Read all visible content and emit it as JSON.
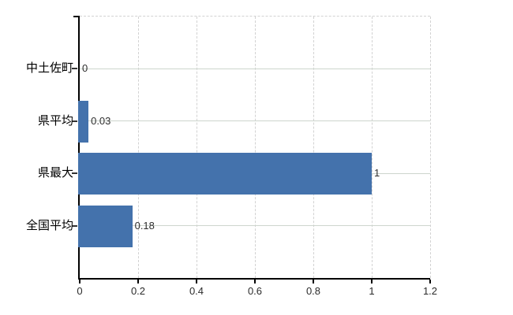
{
  "chart_data": {
    "type": "bar",
    "orientation": "horizontal",
    "title": "",
    "xlabel": "",
    "ylabel": "",
    "categories": [
      "中土佐町",
      "県平均",
      "県最大",
      "全国平均"
    ],
    "values": [
      0,
      0.03,
      1,
      0.18
    ],
    "value_labels": [
      "0",
      "0.03",
      "1",
      "0.18"
    ],
    "x_ticks": [
      0,
      0.2,
      0.4,
      0.6,
      0.8,
      1,
      1.2
    ],
    "x_tick_labels": [
      "0",
      "0.2",
      "0.4",
      "0.6",
      "0.8",
      "1",
      "1.2"
    ],
    "xlim": [
      0,
      1.2
    ],
    "grid": true,
    "legend": false
  },
  "colors": {
    "bar": "#4472ac",
    "h_gridline": "#cdd5cd",
    "v_gridline": "#d2d2d2",
    "axis": "#000000",
    "tick": "#333333",
    "category_label": "#000000",
    "value_label": "#2f2f2f",
    "x_tick_label": "#2b2b2b",
    "background": "#ffffff"
  }
}
